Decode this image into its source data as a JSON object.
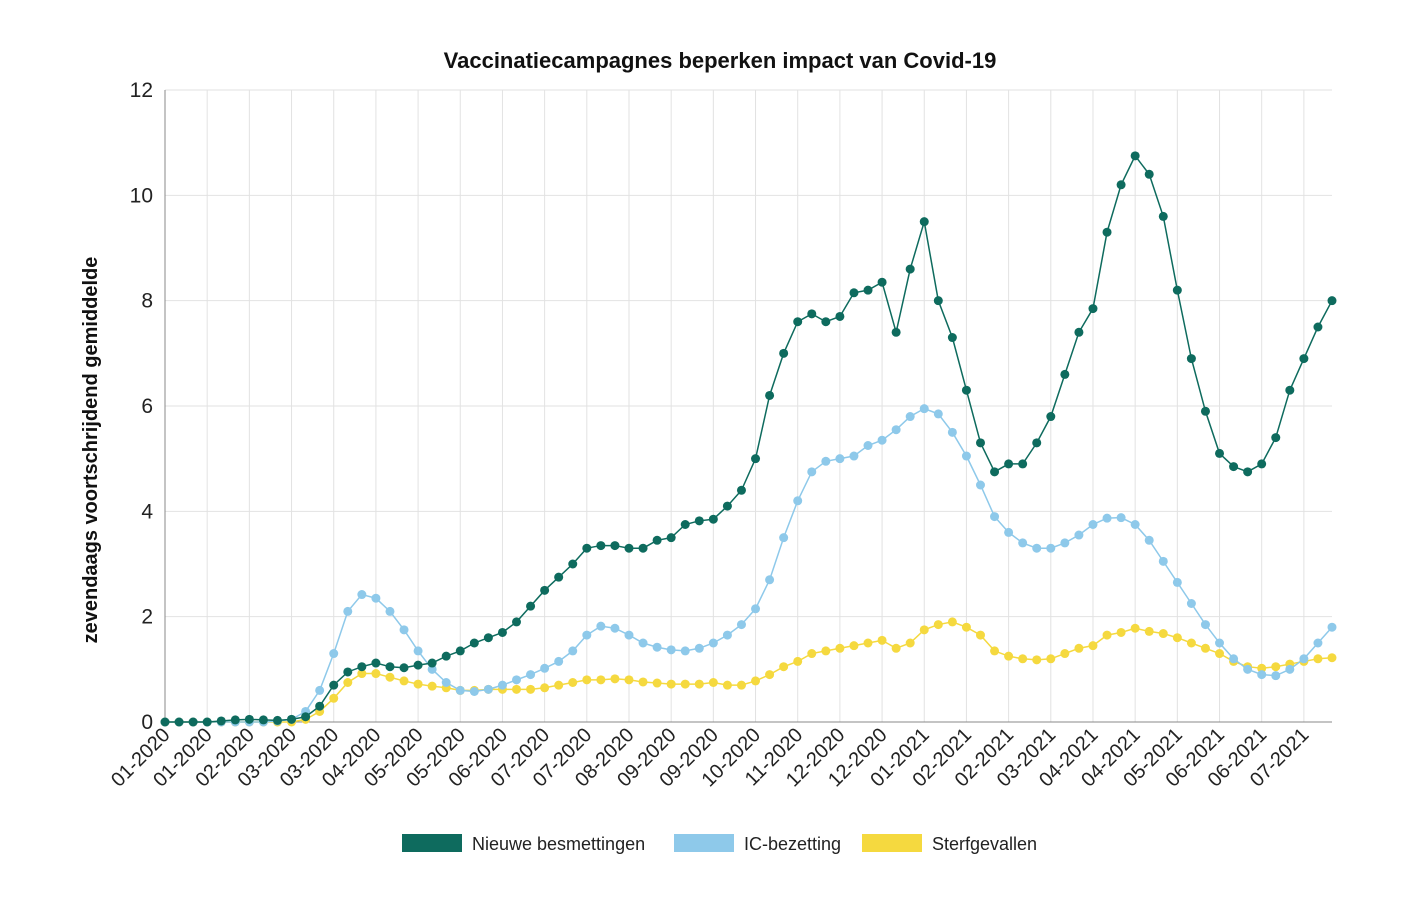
{
  "chart_data": {
    "type": "line",
    "title": "Vaccinatiecampagnes beperken impact van Covid-19",
    "y_label": "zevendaags voortschrijdend gemiddelde",
    "categories": [
      "01-2020",
      null,
      null,
      "01-2020",
      null,
      null,
      "02-2020",
      null,
      null,
      "03-2020",
      null,
      null,
      "03-2020",
      null,
      null,
      "04-2020",
      null,
      null,
      "05-2020",
      null,
      null,
      "05-2020",
      null,
      null,
      "06-2020",
      null,
      null,
      "07-2020",
      null,
      null,
      "07-2020",
      null,
      null,
      "08-2020",
      null,
      null,
      "09-2020",
      null,
      null,
      "09-2020",
      null,
      null,
      "10-2020",
      null,
      null,
      "11-2020",
      null,
      null,
      "12-2020",
      null,
      null,
      "12-2020",
      null,
      null,
      "01-2021",
      null,
      null,
      "02-2021",
      null,
      null,
      "02-2021",
      null,
      null,
      "03-2021",
      null,
      null,
      "04-2021",
      null,
      null,
      "04-2021",
      null,
      null,
      "05-2021",
      null,
      null,
      "06-2021",
      null,
      null,
      "06-2021",
      null,
      null,
      "07-2021",
      null,
      null
    ],
    "series": [
      {
        "name": "Nieuwe besmettingen",
        "color": "#0e6b5e",
        "values": [
          0,
          0,
          0,
          0,
          0.02,
          0.04,
          0.05,
          0.04,
          0.03,
          0.05,
          0.1,
          0.3,
          0.7,
          0.95,
          1.05,
          1.12,
          1.05,
          1.03,
          1.08,
          1.12,
          1.25,
          1.35,
          1.5,
          1.6,
          1.7,
          1.9,
          2.2,
          2.5,
          2.75,
          3.0,
          3.3,
          3.35,
          3.35,
          3.3,
          3.3,
          3.45,
          3.5,
          3.75,
          3.82,
          3.85,
          4.1,
          4.4,
          5.0,
          6.2,
          7.0,
          7.6,
          7.75,
          7.6,
          7.7,
          8.15,
          8.2,
          8.35,
          7.4,
          8.6,
          9.5,
          8.0,
          7.3,
          6.3,
          5.3,
          4.75,
          4.9,
          4.9,
          5.3,
          5.8,
          6.6,
          7.4,
          7.85,
          9.3,
          10.2,
          10.75,
          10.4,
          9.6,
          8.2,
          6.9,
          5.9,
          5.1,
          4.85,
          4.75,
          4.9,
          5.4,
          6.3,
          6.9,
          7.5,
          8.0
        ]
      },
      {
        "name": "IC-bezetting",
        "color": "#8ec9ea",
        "values": [
          0,
          0,
          0,
          0,
          0,
          0,
          0,
          0,
          0.02,
          0.05,
          0.2,
          0.6,
          1.3,
          2.1,
          2.42,
          2.35,
          2.1,
          1.75,
          1.35,
          1.0,
          0.75,
          0.6,
          0.58,
          0.62,
          0.7,
          0.8,
          0.9,
          1.02,
          1.15,
          1.35,
          1.65,
          1.82,
          1.78,
          1.65,
          1.5,
          1.42,
          1.37,
          1.35,
          1.4,
          1.5,
          1.65,
          1.85,
          2.15,
          2.7,
          3.5,
          4.2,
          4.75,
          4.95,
          5.0,
          5.05,
          5.25,
          5.35,
          5.55,
          5.8,
          5.95,
          5.85,
          5.5,
          5.05,
          4.5,
          3.9,
          3.6,
          3.4,
          3.3,
          3.3,
          3.4,
          3.55,
          3.75,
          3.87,
          3.88,
          3.75,
          3.45,
          3.05,
          2.65,
          2.25,
          1.85,
          1.5,
          1.2,
          1.0,
          0.9,
          0.88,
          1.0,
          1.2,
          1.5,
          1.8
        ]
      },
      {
        "name": "Sterfgevallen",
        "color": "#f5d93f",
        "values": [
          0,
          0,
          0,
          0,
          0,
          0,
          0,
          0,
          0,
          0,
          0.05,
          0.2,
          0.45,
          0.75,
          0.92,
          0.92,
          0.85,
          0.78,
          0.72,
          0.68,
          0.65,
          0.6,
          0.6,
          0.62,
          0.62,
          0.62,
          0.62,
          0.65,
          0.7,
          0.75,
          0.8,
          0.8,
          0.82,
          0.8,
          0.76,
          0.74,
          0.72,
          0.72,
          0.72,
          0.75,
          0.7,
          0.7,
          0.78,
          0.9,
          1.05,
          1.15,
          1.3,
          1.35,
          1.4,
          1.45,
          1.5,
          1.55,
          1.4,
          1.5,
          1.75,
          1.85,
          1.9,
          1.8,
          1.65,
          1.35,
          1.25,
          1.2,
          1.18,
          1.2,
          1.3,
          1.4,
          1.45,
          1.65,
          1.7,
          1.78,
          1.72,
          1.68,
          1.6,
          1.5,
          1.4,
          1.3,
          1.15,
          1.05,
          1.02,
          1.05,
          1.1,
          1.15,
          1.2,
          1.22
        ]
      }
    ],
    "ylim": [
      0,
      12
    ],
    "yticks": [
      0,
      2,
      4,
      6,
      8,
      10,
      12
    ],
    "grid": true
  }
}
